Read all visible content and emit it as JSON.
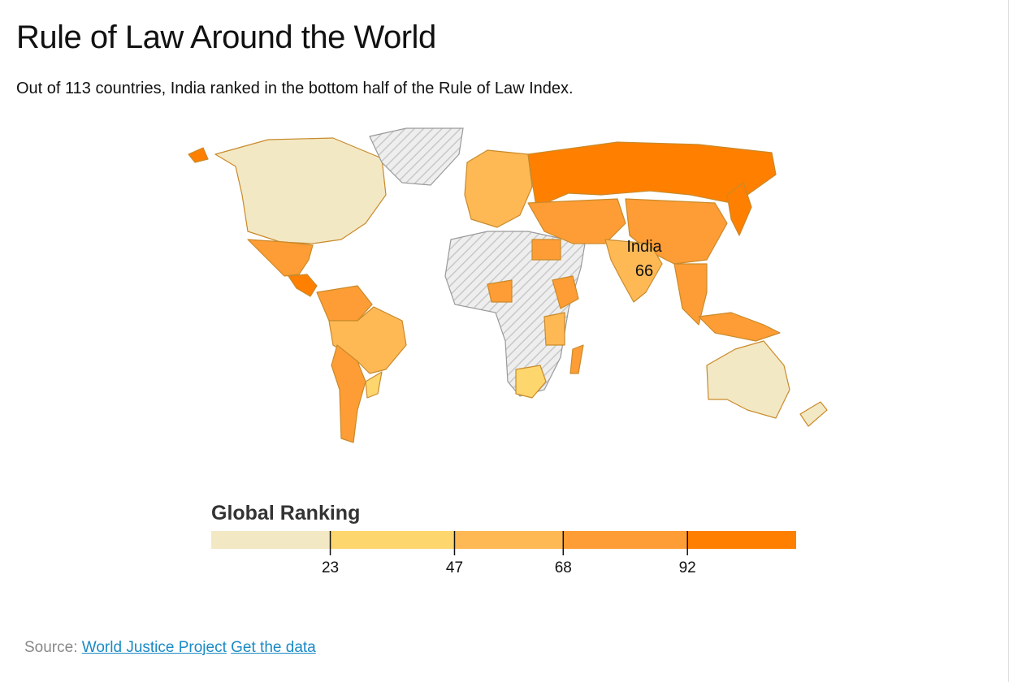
{
  "title": "Rule of Law Around the World",
  "subtitle": "Out of 113 countries, India ranked in the bottom half of the Rule of Law Index.",
  "annotation": {
    "label": "India",
    "value": 66
  },
  "legend": {
    "title": "Global Ranking",
    "xlim": [
      0,
      113
    ],
    "thresholds": [
      23,
      47,
      68,
      92
    ],
    "colors": [
      "#f3e8c4",
      "#fed66e",
      "#feb955",
      "#fe9d35",
      "#ff7f00"
    ]
  },
  "source": {
    "label": "Source:",
    "links": [
      "World Justice Project",
      "Get the data"
    ]
  }
}
